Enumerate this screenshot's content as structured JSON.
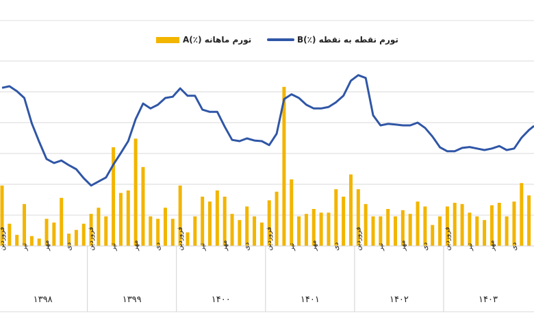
{
  "chart_data": {
    "type": "bar+line",
    "title": "",
    "xlabel": "",
    "ylabel": "",
    "legend_position": "top-center",
    "grid": true,
    "colors": {
      "A": "#f2b500",
      "B": "#2f56a6"
    },
    "years": [
      "۱۳۹۸",
      "۱۳۹۹",
      "۱۴۰۰",
      "۱۴۰۱",
      "۱۴۰۲",
      "۱۴۰۳"
    ],
    "month_labels": [
      "فروردین",
      "تیر",
      "مهر",
      "دی"
    ],
    "series": [
      {
        "name": "تورم ماهانه (٪)A",
        "type": "bar",
        "axis": "secondary",
        "ylim": [
          0,
          15
        ],
        "values": [
          4.9,
          1.8,
          0.9,
          3.4,
          0.8,
          0.6,
          2.2,
          1.9,
          3.9,
          1.0,
          1.3,
          1.8,
          2.6,
          3.1,
          2.4,
          8.0,
          4.3,
          4.5,
          8.7,
          6.4,
          2.4,
          2.2,
          3.1,
          2.2,
          4.9,
          1.1,
          2.4,
          4.0,
          3.6,
          4.5,
          4.0,
          2.6,
          2.1,
          3.2,
          2.4,
          1.9,
          3.7,
          4.4,
          12.9,
          5.4,
          2.4,
          2.6,
          3.0,
          2.7,
          2.7,
          4.6,
          4.0,
          5.8,
          4.6,
          3.4,
          2.4,
          2.4,
          3.0,
          2.4,
          2.9,
          2.6,
          3.6,
          3.2,
          1.7,
          2.4,
          3.2,
          3.5,
          3.4,
          2.7,
          2.4,
          2.1,
          3.3,
          3.5,
          2.4,
          3.6,
          5.1,
          4.1
        ]
      },
      {
        "name": "تورم نقطه به نقطه (٪)B",
        "type": "line",
        "axis": "primary",
        "ylim": [
          0,
          65
        ],
        "values": [
          51.3,
          51.8,
          50.2,
          48.0,
          39.8,
          33.8,
          28.2,
          26.9,
          27.7,
          26.2,
          24.9,
          22.0,
          19.6,
          20.9,
          22.2,
          26.4,
          30.1,
          34.0,
          41.1,
          46.2,
          44.6,
          45.8,
          48.0,
          48.4,
          51.1,
          48.7,
          48.7,
          44.2,
          43.5,
          43.5,
          38.7,
          34.4,
          34.0,
          34.9,
          34.2,
          34.0,
          32.7,
          36.4,
          47.6,
          49.2,
          48.0,
          45.8,
          44.6,
          44.6,
          45.1,
          46.6,
          48.7,
          53.6,
          55.4,
          54.5,
          42.4,
          39.1,
          39.6,
          39.4,
          39.1,
          39.1,
          40.0,
          38.3,
          35.5,
          32.0,
          30.7,
          30.7,
          31.8,
          32.1,
          31.6,
          31.1,
          31.6,
          32.4,
          31.1,
          31.6,
          35.1,
          37.6
        ]
      }
    ]
  }
}
